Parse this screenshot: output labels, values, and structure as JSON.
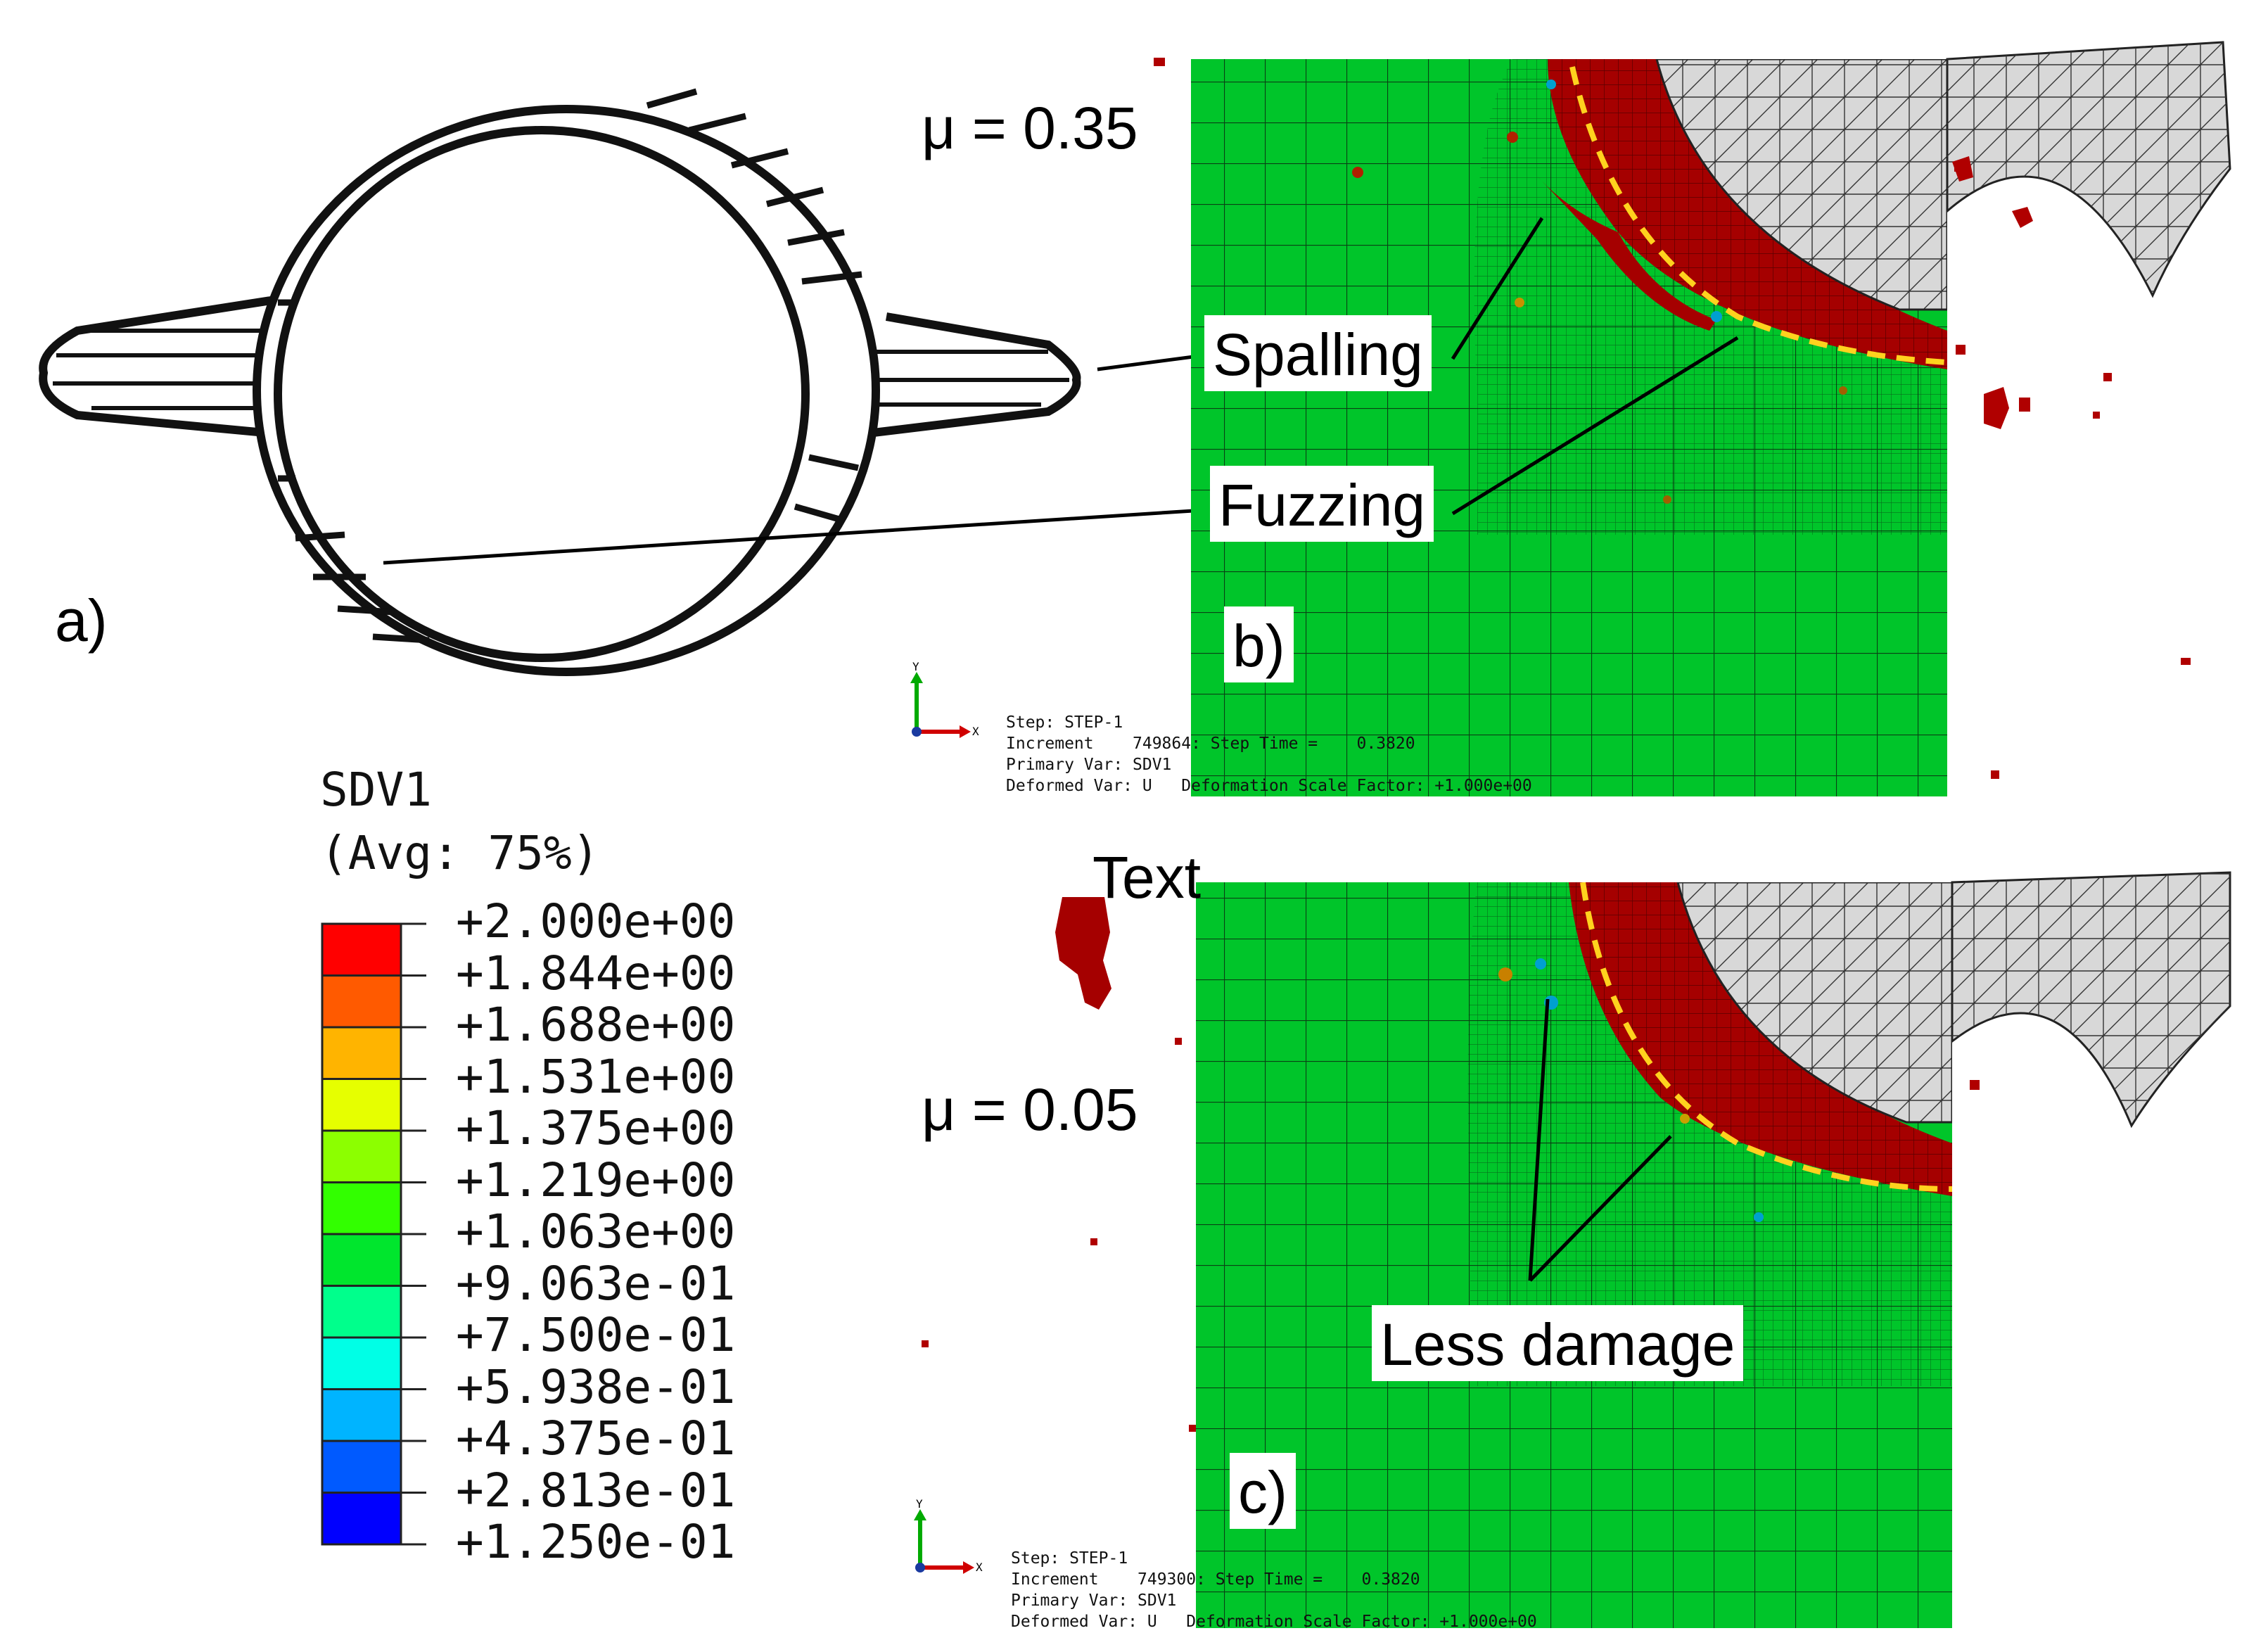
{
  "panel_a": {
    "label": "a)"
  },
  "panel_b": {
    "label": "b)",
    "mu": "μ = 0.35",
    "callouts": [
      "Spalling",
      "Fuzzing"
    ],
    "info": {
      "step": "Step: STEP-1",
      "increment": "Increment    749864: Step Time =    0.3820",
      "primary": "Primary Var: SDV1",
      "deformed": "Deformed Var: U   Deformation Scale Factor: +1.000e+00"
    }
  },
  "panel_c": {
    "label": "c)",
    "mu": "μ = 0.05",
    "callouts": [
      "Less damage"
    ],
    "info": {
      "step": "Step: STEP-1",
      "increment": "Increment    749300: Step Time =    0.3820",
      "primary": "Primary Var: SDV1",
      "deformed": "Deformed Var: U   Deformation Scale Factor: +1.000e+00"
    }
  },
  "stray_text": "Text",
  "axis_triad": {
    "y": "Y",
    "x": "X"
  },
  "legend": {
    "title": "SDV1",
    "subtitle": "(Avg: 75%)",
    "ticks": [
      "+2.000e+00",
      "+1.844e+00",
      "+1.688e+00",
      "+1.531e+00",
      "+1.375e+00",
      "+1.219e+00",
      "+1.063e+00",
      "+9.063e-01",
      "+7.500e-01",
      "+5.938e-01",
      "+4.375e-01",
      "+2.813e-01",
      "+1.250e-01"
    ],
    "colors": [
      "#ff0000",
      "#ff5a00",
      "#ffb400",
      "#e6ff00",
      "#8cff00",
      "#32ff00",
      "#00e62d",
      "#00ff8c",
      "#00ffe6",
      "#00b4ff",
      "#005aff",
      "#0000ff"
    ]
  },
  "colors": {
    "mesh_green": "#00c52a",
    "damage_red": "#a60000",
    "interface_dash": "#ffd21e"
  }
}
